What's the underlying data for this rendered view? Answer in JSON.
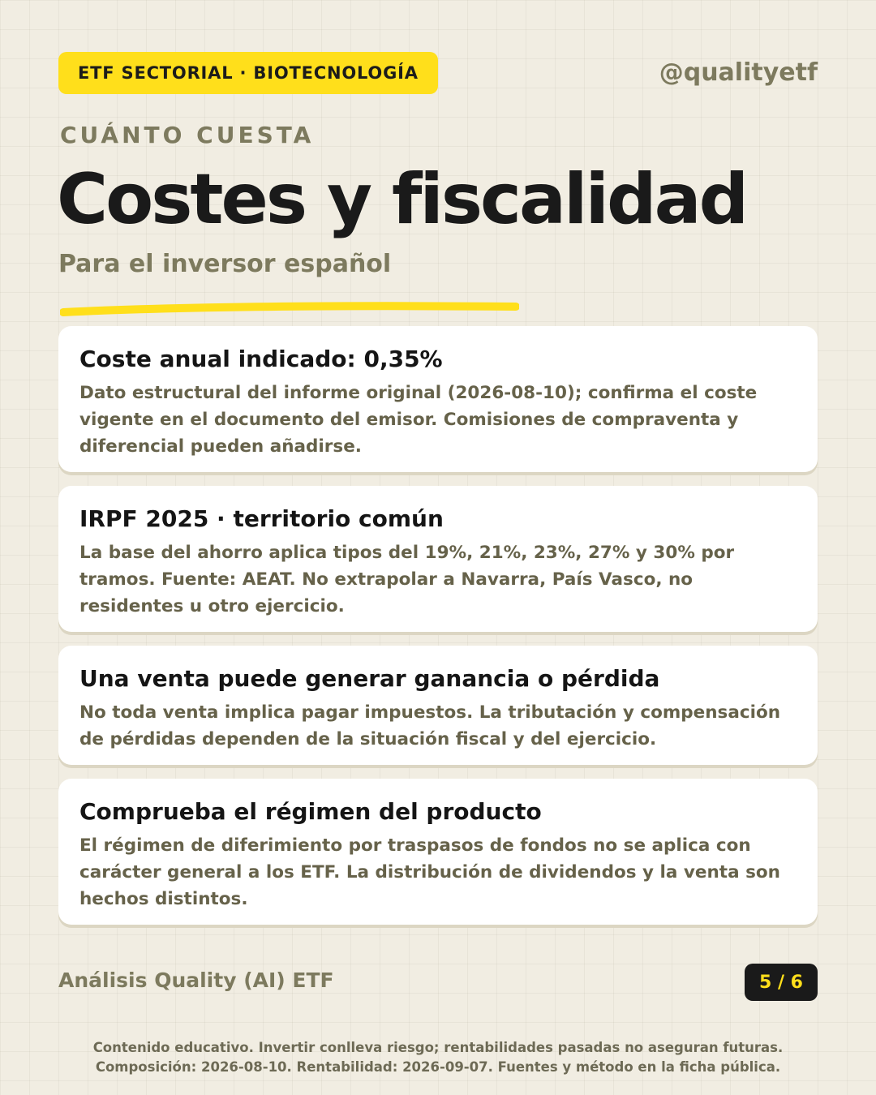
{
  "header": {
    "tag": "ETF SECTORIAL · BIOTECNOLOGÍA",
    "handle": "@qualityetf"
  },
  "kicker": "CUÁNTO CUESTA",
  "title": "Costes y fiscalidad",
  "subtitle": "Para el inversor español",
  "colors": {
    "accent": "#ffdf1b",
    "background": "#f1ede2",
    "muted_text": "#7d7a5e",
    "card": "#ffffff"
  },
  "cards": [
    {
      "title": "Coste anual indicado: 0,35%",
      "text": "Dato estructural del informe original (2026-08-10); confirma el coste vigente en el documento del emisor. Comisiones de compraventa y diferencial pueden añadirse."
    },
    {
      "title": "IRPF 2025 · territorio común",
      "text": "La base del ahorro aplica tipos del 19%, 21%, 23%, 27% y 30% por tramos. Fuente: AEAT. No extrapolar a Navarra, País Vasco, no residentes u otro ejercicio."
    },
    {
      "title": "Una venta puede generar ganancia o pérdida",
      "text": "No toda venta implica pagar impuestos. La tributación y compensación de pérdidas dependen de la situación fiscal y del ejercicio."
    },
    {
      "title": "Comprueba el régimen del producto",
      "text": "El régimen de diferimiento por traspasos de fondos no se aplica con carácter general a los ETF. La distribución de dividendos y la venta son hechos distintos."
    }
  ],
  "footer": {
    "brand": "Análisis Quality (AI) ETF",
    "page": "5 / 6",
    "disclaimer_line1": "Contenido educativo. Invertir conlleva riesgo; rentabilidades pasadas no aseguran futuras.",
    "disclaimer_line2": "Composición: 2026-08-10. Rentabilidad: 2026-09-07. Fuentes y método en la ficha pública."
  }
}
